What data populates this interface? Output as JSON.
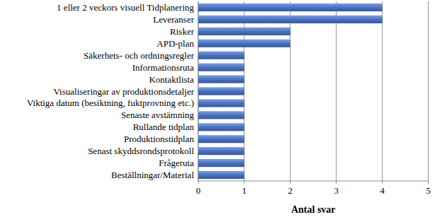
{
  "chart_data": {
    "type": "bar",
    "orientation": "horizontal",
    "categories": [
      "1 eller 2 veckors visuell Tidplanering",
      "Leveranser",
      "Risker",
      "APD-plan",
      "Säkerhets- och ordningsregler",
      "Informationsruta",
      "Kontaktlista",
      "Visualiseringar av produktionsdetaljer",
      "Viktiga datum (besiktning, fuktprovning etc.)",
      "Senaste avstämning",
      "Rullande tidplan",
      "Produktionstidplan",
      "Senast skyddsrondsprotokoll",
      "Frågeruta",
      "Beställningar/Material"
    ],
    "values": [
      4,
      4,
      2,
      2,
      1,
      1,
      1,
      1,
      1,
      1,
      1,
      1,
      1,
      1,
      1
    ],
    "color": "#4a72c0",
    "x_label": "Antal svar",
    "xlim": [
      0,
      5
    ],
    "xticks": [
      0,
      1,
      2,
      3,
      4,
      5
    ],
    "grid": true
  }
}
